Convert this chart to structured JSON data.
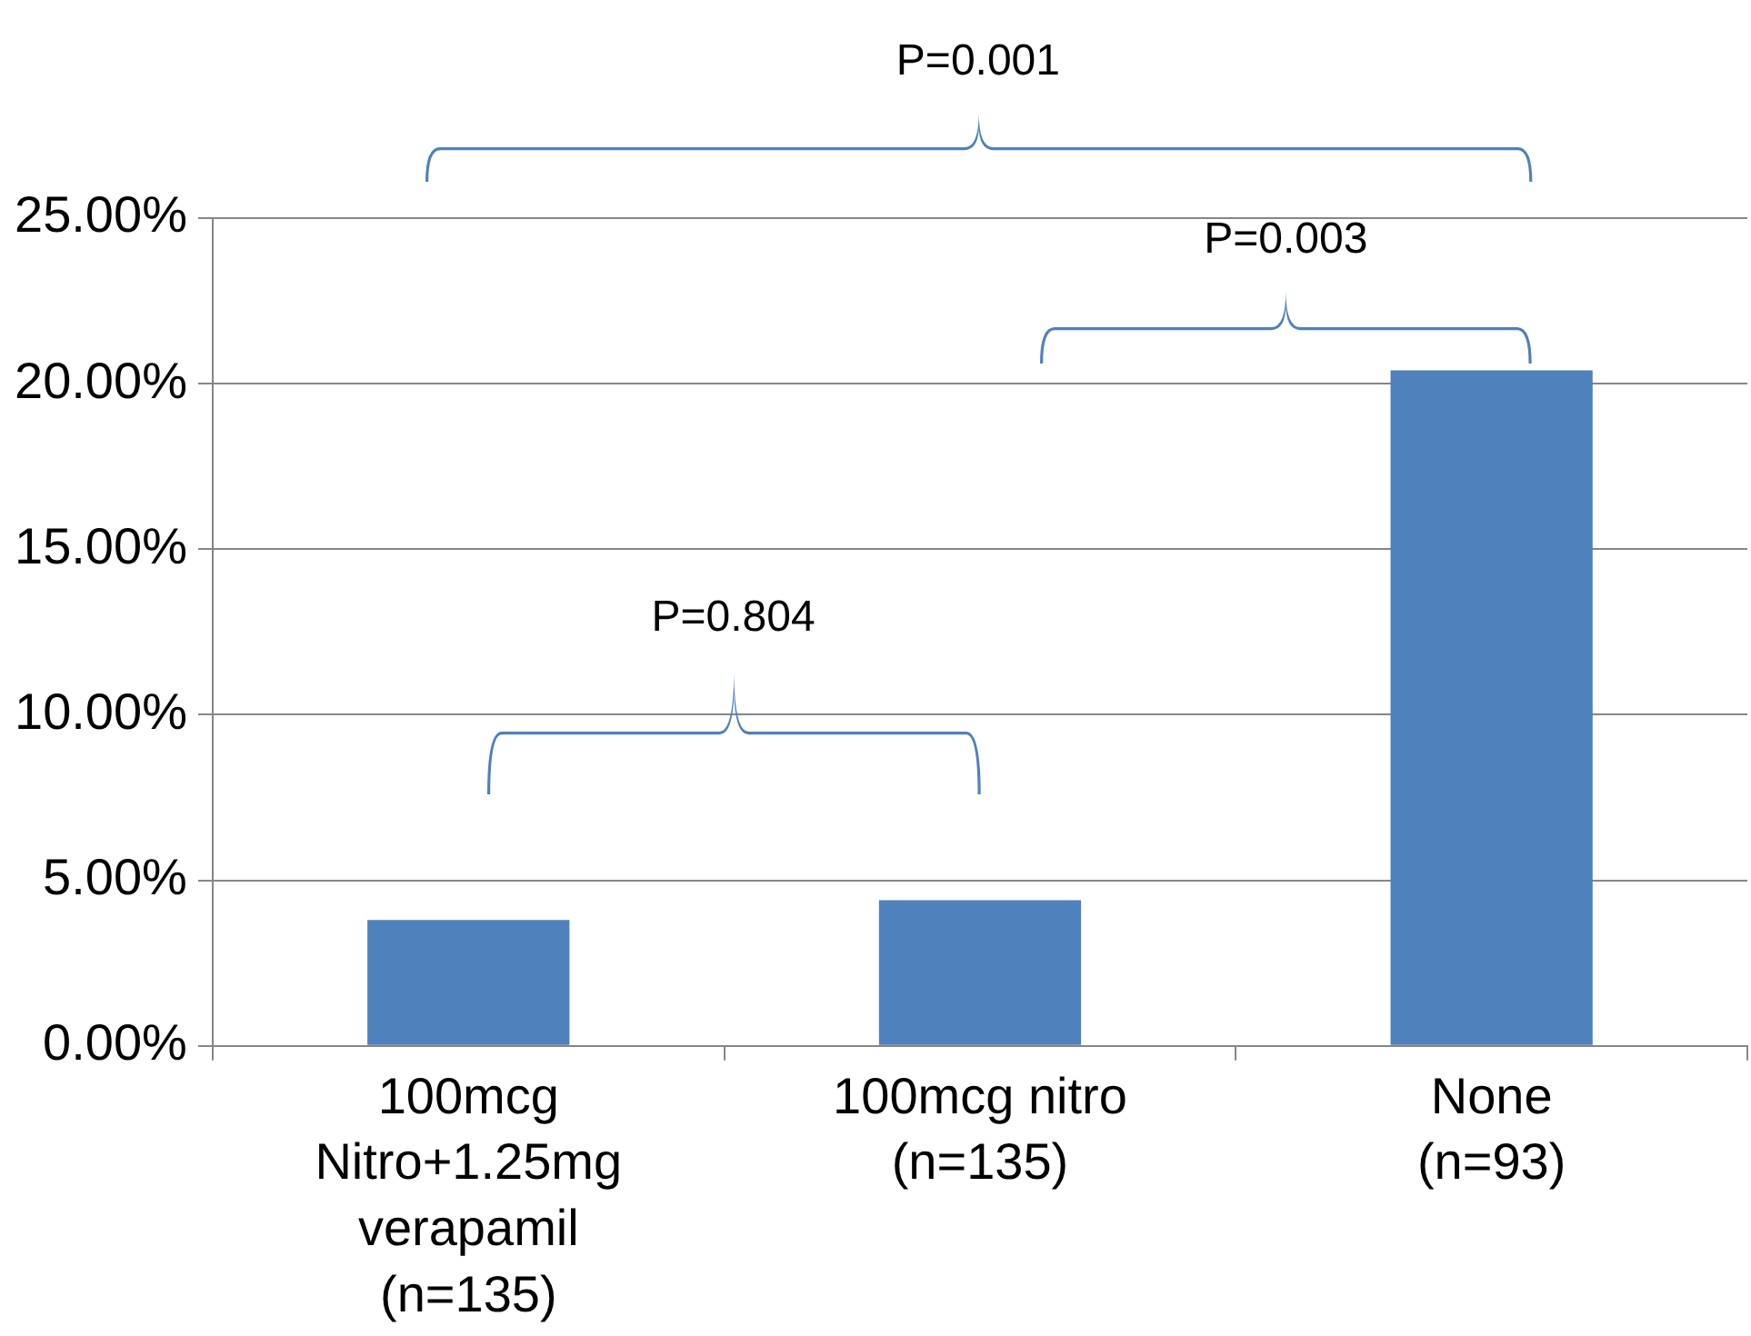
{
  "chart_data": {
    "type": "bar",
    "categories": [
      "100mcg Nitro+1.25mg verapamil (n=135)",
      "100mcg nitro (n=135)",
      "None (n=93)"
    ],
    "values": [
      3.8,
      4.4,
      20.4
    ],
    "color": "#4f81bd",
    "ylim": [
      0,
      25
    ],
    "yticks": [
      {
        "value": 0,
        "label": "0.00%"
      },
      {
        "value": 5,
        "label": "5.00%"
      },
      {
        "value": 10,
        "label": "10.00%"
      },
      {
        "value": 15,
        "label": "15.00%"
      },
      {
        "value": 20,
        "label": "20.00%"
      },
      {
        "value": 25,
        "label": "25.00%"
      }
    ],
    "grid": "y",
    "legend": false,
    "annotations": [
      "P=0.804",
      "P=0.003",
      "P=0.001"
    ]
  }
}
